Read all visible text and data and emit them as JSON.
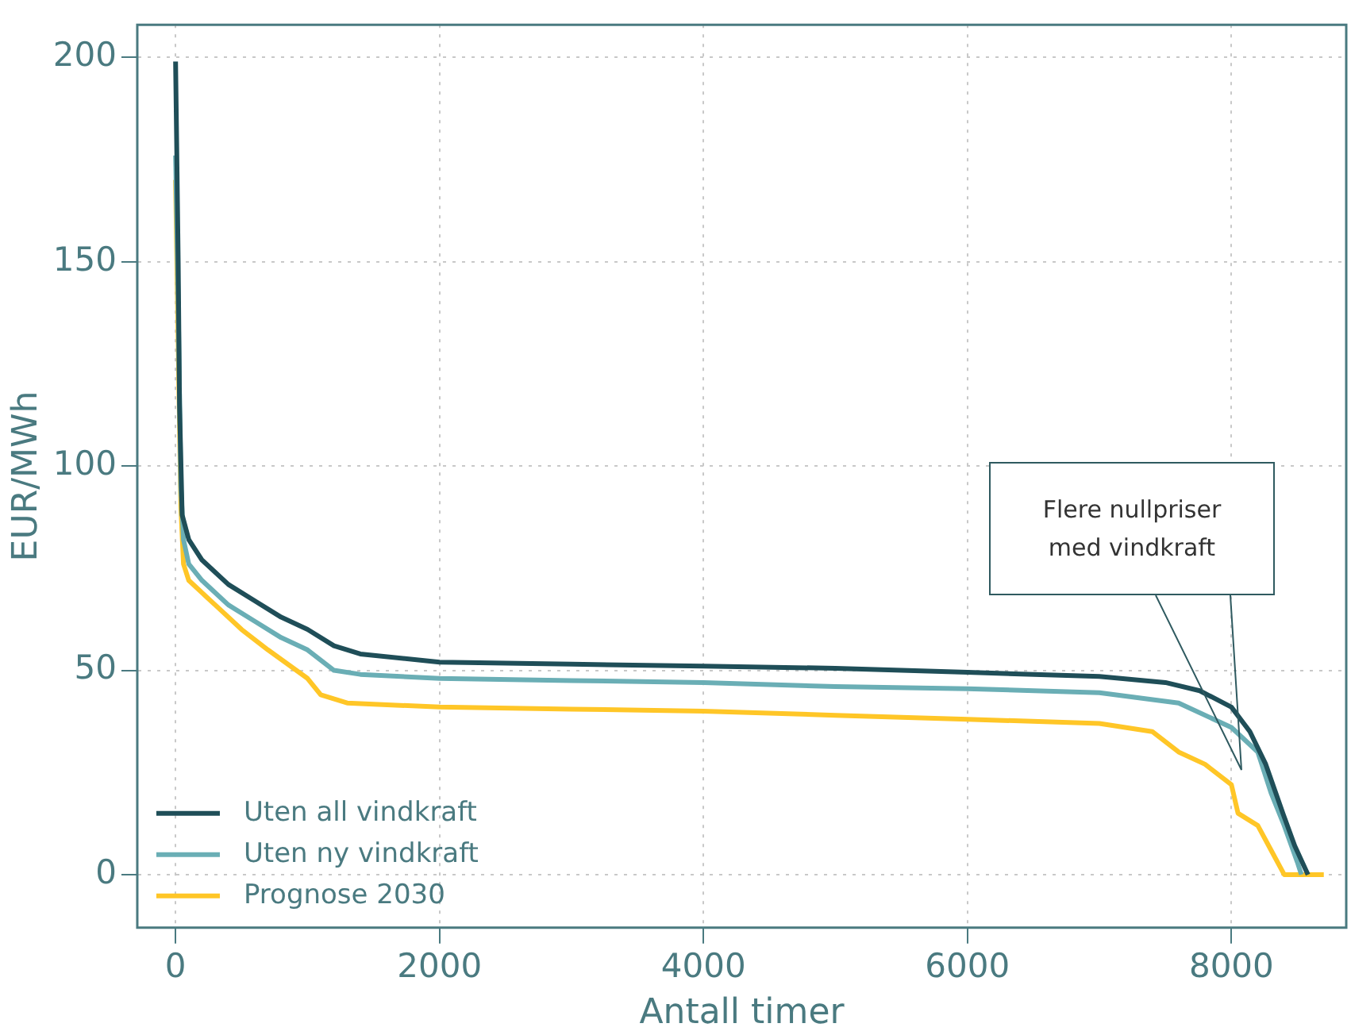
{
  "chart_data": {
    "type": "line",
    "xlabel": "Antall timer",
    "ylabel": "EUR/MWh",
    "xlim": [
      -290,
      8870
    ],
    "ylim": [
      -13,
      208
    ],
    "xticks": [
      0,
      2000,
      4000,
      6000,
      8000
    ],
    "yticks": [
      0,
      50,
      100,
      150,
      200
    ],
    "grid": true,
    "legend": "bottom left",
    "marker": "none",
    "line_style": "solid",
    "annotations": [
      "Flere nullpriser med vindkraft"
    ],
    "series": [
      {
        "name": "Uten all vindkraft",
        "color": "#1f4e58",
        "x": [
          0,
          10,
          20,
          30,
          50,
          100,
          200,
          400,
          600,
          800,
          1000,
          1200,
          1400,
          2000,
          3000,
          4000,
          5000,
          6000,
          7000,
          7500,
          7760,
          8000,
          8140,
          8260,
          8390,
          8480,
          8580
        ],
        "values": [
          199,
          175,
          150,
          115,
          88,
          82,
          77,
          71,
          67,
          63,
          60,
          56,
          54,
          52,
          51.5,
          51,
          50.5,
          49.5,
          48.5,
          47,
          45,
          41,
          35,
          27,
          15,
          7,
          0
        ]
      },
      {
        "name": "Uten ny vindkraft",
        "color": "#6aaeb5",
        "x": [
          0,
          20,
          40,
          60,
          100,
          200,
          400,
          600,
          800,
          1000,
          1200,
          1400,
          2000,
          3000,
          4000,
          5000,
          6000,
          7000,
          7600,
          8000,
          8200,
          8300,
          8400,
          8500,
          8530
        ],
        "values": [
          176,
          140,
          95,
          82,
          76,
          72,
          66,
          62,
          58,
          55,
          50,
          49,
          48,
          47.5,
          47,
          46,
          45.5,
          44.5,
          42,
          36,
          30,
          20,
          12,
          3,
          0
        ]
      },
      {
        "name": "Prognose 2030",
        "color": "#ffc627",
        "x": [
          0,
          20,
          40,
          60,
          100,
          300,
          500,
          700,
          1000,
          1100,
          1300,
          2000,
          3000,
          4000,
          5000,
          6000,
          7000,
          7400,
          7600,
          7800,
          8000,
          8050,
          8200,
          8300,
          8400,
          8700
        ],
        "values": [
          170,
          130,
          90,
          76,
          72,
          66,
          60,
          55,
          48,
          44,
          42,
          41,
          40.5,
          40,
          39,
          38,
          37,
          35,
          30,
          27,
          22,
          15,
          12,
          6,
          0,
          0
        ]
      }
    ]
  }
}
